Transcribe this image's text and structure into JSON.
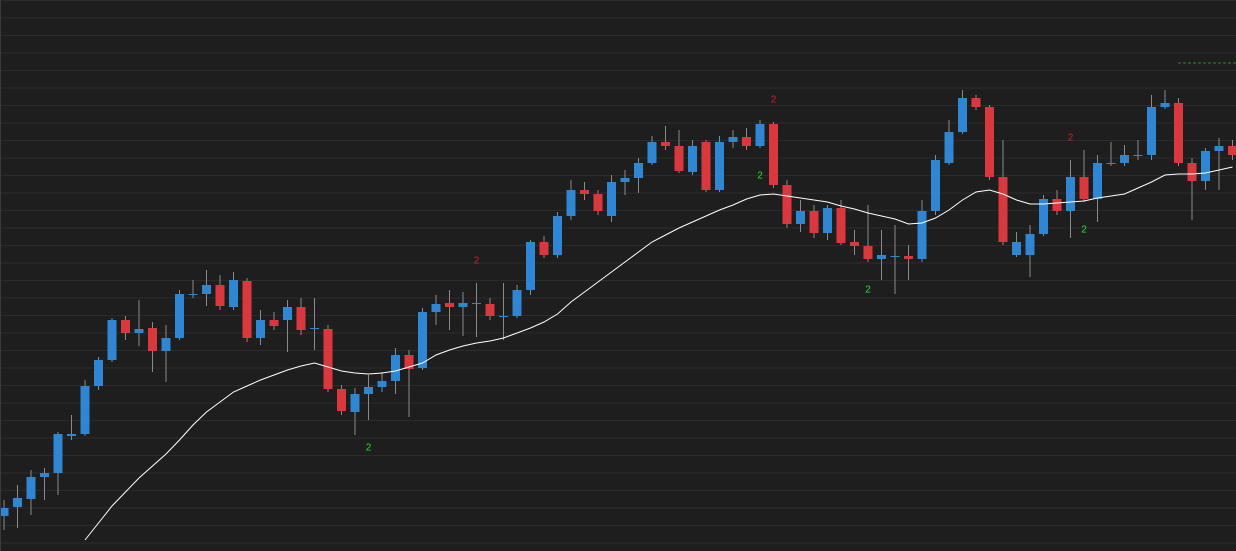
{
  "chart_data": {
    "type": "candlestick",
    "ylim": [
      0,
      550
    ],
    "up_color": "#2f86d2",
    "down_color": "#d9383f",
    "wick_color": "#8a8a8a",
    "open": [
      34,
      43,
      51,
      73,
      77,
      114,
      116,
      164,
      190,
      230,
      217,
      222,
      199,
      212,
      256,
      256,
      265,
      243,
      269,
      212,
      230,
      230,
      243,
      222,
      221,
      161,
      138,
      156,
      163,
      169,
      195,
      182,
      238,
      247,
      243,
      247,
      246,
      234,
      234,
      260,
      308,
      295,
      334,
      360,
      356,
      334,
      368,
      372,
      387,
      408,
      404,
      378,
      408,
      360,
      408,
      413,
      404,
      426,
      365,
      326,
      339,
      317,
      342,
      308,
      304,
      291,
      294,
      294,
      291,
      339,
      387,
      418,
      452,
      443,
      373,
      295,
      295,
      316,
      351,
      339,
      373,
      351,
      387,
      387,
      395,
      395,
      443,
      447,
      387,
      369,
      399,
      404
    ],
    "high": [
      50,
      65,
      80,
      82,
      118,
      135,
      170,
      193,
      232,
      234,
      250,
      228,
      225,
      260,
      270,
      280,
      275,
      278,
      272,
      240,
      238,
      250,
      252,
      252,
      225,
      165,
      162,
      175,
      178,
      202,
      200,
      242,
      255,
      260,
      258,
      267,
      252,
      267,
      265,
      310,
      314,
      338,
      370,
      368,
      360,
      375,
      380,
      392,
      414,
      424,
      420,
      410,
      410,
      414,
      420,
      422,
      430,
      428,
      370,
      350,
      345,
      345,
      350,
      320,
      345,
      320,
      325,
      305,
      350,
      395,
      430,
      460,
      455,
      445,
      410,
      318,
      325,
      355,
      360,
      390,
      400,
      395,
      408,
      405,
      410,
      455,
      460,
      452,
      392,
      402,
      412,
      410
    ],
    "low": [
      20,
      22,
      35,
      50,
      55,
      110,
      114,
      160,
      188,
      210,
      204,
      178,
      168,
      210,
      252,
      244,
      240,
      240,
      208,
      205,
      220,
      198,
      215,
      200,
      158,
      135,
      115,
      130,
      158,
      156,
      133,
      180,
      225,
      220,
      214,
      213,
      230,
      210,
      232,
      255,
      292,
      292,
      330,
      350,
      335,
      328,
      355,
      357,
      385,
      400,
      377,
      375,
      358,
      358,
      402,
      400,
      402,
      362,
      322,
      318,
      312,
      310,
      305,
      295,
      288,
      270,
      256,
      270,
      288,
      335,
      385,
      416,
      440,
      370,
      305,
      293,
      273,
      314,
      335,
      312,
      348,
      328,
      384,
      384,
      390,
      390,
      441,
      384,
      330,
      360,
      360,
      390
    ],
    "close": [
      42,
      52,
      73,
      77,
      116,
      116,
      164,
      190,
      230,
      217,
      221,
      199,
      212,
      256,
      256,
      265,
      244,
      270,
      212,
      230,
      224,
      243,
      220,
      222,
      161,
      139,
      156,
      163,
      169,
      195,
      181,
      238,
      246,
      243,
      247,
      247,
      234,
      234,
      260,
      308,
      295,
      334,
      360,
      356,
      339,
      368,
      372,
      387,
      408,
      404,
      379,
      404,
      360,
      408,
      413,
      404,
      426,
      365,
      326,
      339,
      317,
      342,
      307,
      304,
      291,
      295,
      294,
      291,
      339,
      390,
      418,
      452,
      443,
      373,
      308,
      308,
      316,
      351,
      339,
      373,
      351,
      387,
      387,
      395,
      395,
      443,
      447,
      387,
      369,
      399,
      404,
      395
    ],
    "moving_average": {
      "color": "#ffffff",
      "values": [
        null,
        null,
        null,
        null,
        null,
        null,
        10,
        27,
        44,
        58,
        72,
        84,
        96,
        110,
        125,
        138,
        148,
        158,
        164,
        170,
        175,
        180,
        184,
        187,
        183,
        179,
        177,
        176,
        177,
        179,
        183,
        187,
        195,
        200,
        204,
        207,
        209,
        212,
        217,
        222,
        228,
        236,
        248,
        258,
        268,
        278,
        288,
        298,
        308,
        315,
        322,
        328,
        334,
        340,
        345,
        351,
        355,
        356,
        354,
        352,
        350,
        348,
        344,
        341,
        337,
        334,
        331,
        326,
        327,
        332,
        340,
        350,
        358,
        360,
        356,
        350,
        346,
        346,
        347,
        348,
        349,
        352,
        354,
        356,
        362,
        368,
        375,
        376,
        376,
        377,
        380,
        383
      ]
    },
    "signals": [
      {
        "candle": 27,
        "text": "2",
        "color": "#22e222",
        "position": "below"
      },
      {
        "candle": 35,
        "text": "2",
        "color": "#d0202a",
        "position": "above"
      },
      {
        "candle": 56,
        "text": "2",
        "color": "#22e222",
        "position": "below"
      },
      {
        "candle": 57,
        "text": "2",
        "color": "#d0202a",
        "position": "above"
      },
      {
        "candle": 64,
        "text": "2",
        "color": "#22e222",
        "position": "below"
      },
      {
        "candle": 79,
        "text": "2",
        "color": "#d0202a",
        "position": "above"
      },
      {
        "candle": 80,
        "text": "2",
        "color": "#22e222",
        "position": "below"
      }
    ]
  }
}
